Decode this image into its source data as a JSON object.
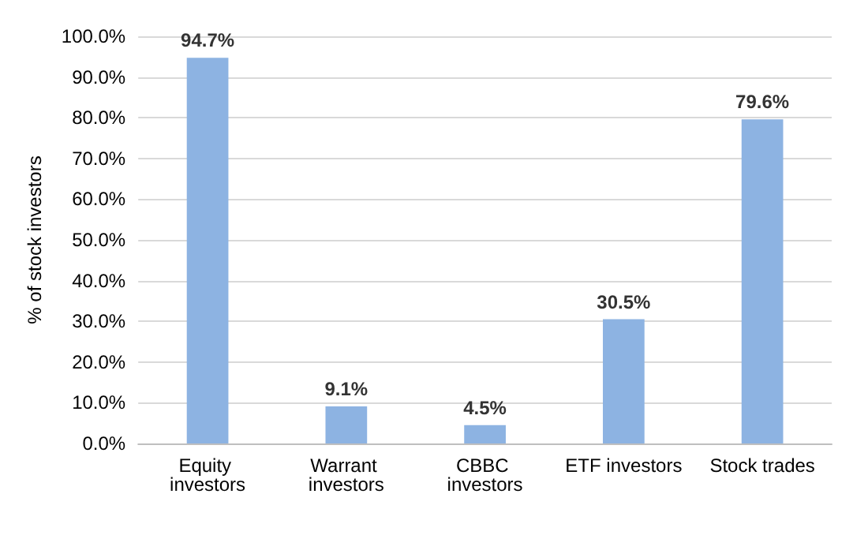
{
  "chart_data": {
    "type": "bar",
    "ylabel": "% of stock investors",
    "categories": [
      "Equity investors",
      "Warrant investors",
      "CBBC investors",
      "ETF investors",
      "Stock trades"
    ],
    "values": [
      94.7,
      9.1,
      4.5,
      30.5,
      79.6
    ],
    "value_labels": [
      "94.7%",
      "9.1%",
      "4.5%",
      "30.5%",
      "79.6%"
    ],
    "color": "#8db3e2",
    "ylim": [
      0,
      100
    ],
    "yticks": [
      {
        "value": 0,
        "label": "0.0%"
      },
      {
        "value": 10,
        "label": "10.0%"
      },
      {
        "value": 20,
        "label": "20.0%"
      },
      {
        "value": 30,
        "label": "30.0%"
      },
      {
        "value": 40,
        "label": "40.0%"
      },
      {
        "value": 50,
        "label": "50.0%"
      },
      {
        "value": 60,
        "label": "60.0%"
      },
      {
        "value": 70,
        "label": "70.0%"
      },
      {
        "value": 80,
        "label": "80.0%"
      },
      {
        "value": 90,
        "label": "90.0%"
      },
      {
        "value": 100,
        "label": "100.0%"
      }
    ],
    "grid": "y"
  }
}
